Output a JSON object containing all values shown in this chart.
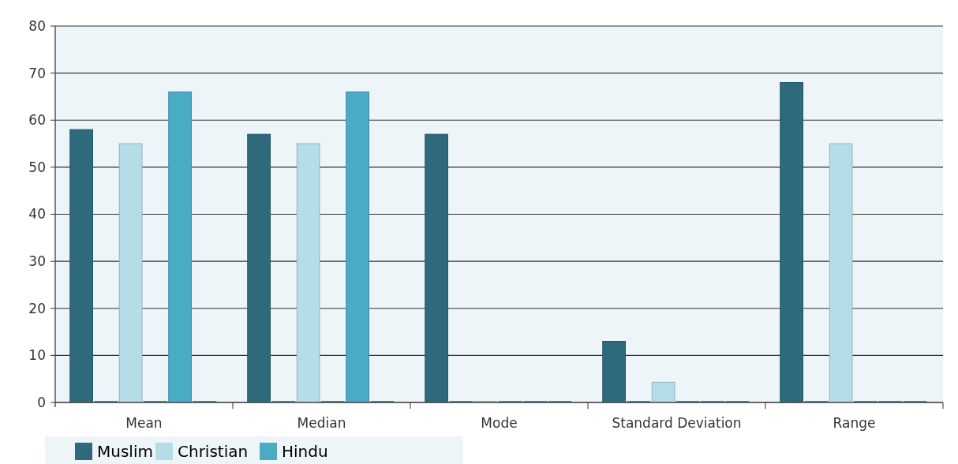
{
  "chart_data": {
    "type": "bar",
    "categories": [
      "Mean",
      "Median",
      "Mode",
      "Standard Deviation",
      "Range"
    ],
    "series": [
      {
        "name": "Muslim",
        "color": "#2e6a7c",
        "values": [
          58,
          57,
          57,
          13,
          68
        ]
      },
      {
        "color": "#4aabc5",
        "values": [
          0,
          0,
          0,
          0,
          0
        ]
      },
      {
        "name": "Christian",
        "color": "#b5dde7",
        "values": [
          55,
          55,
          0,
          4.3,
          55
        ]
      },
      {
        "color": "#4aabc5",
        "values": [
          0,
          0,
          0,
          0,
          0
        ]
      },
      {
        "name": "Hindu",
        "color": "#4aabc5",
        "values": [
          66,
          66,
          0,
          0,
          0
        ]
      },
      {
        "color": "#4aabc5",
        "values": [
          0,
          0,
          0,
          0,
          0
        ]
      }
    ],
    "ylim": [
      0,
      80
    ],
    "yticks": [
      0,
      10,
      20,
      30,
      40,
      50,
      60,
      70,
      80
    ],
    "grid": "y",
    "legend": "bottom left"
  }
}
